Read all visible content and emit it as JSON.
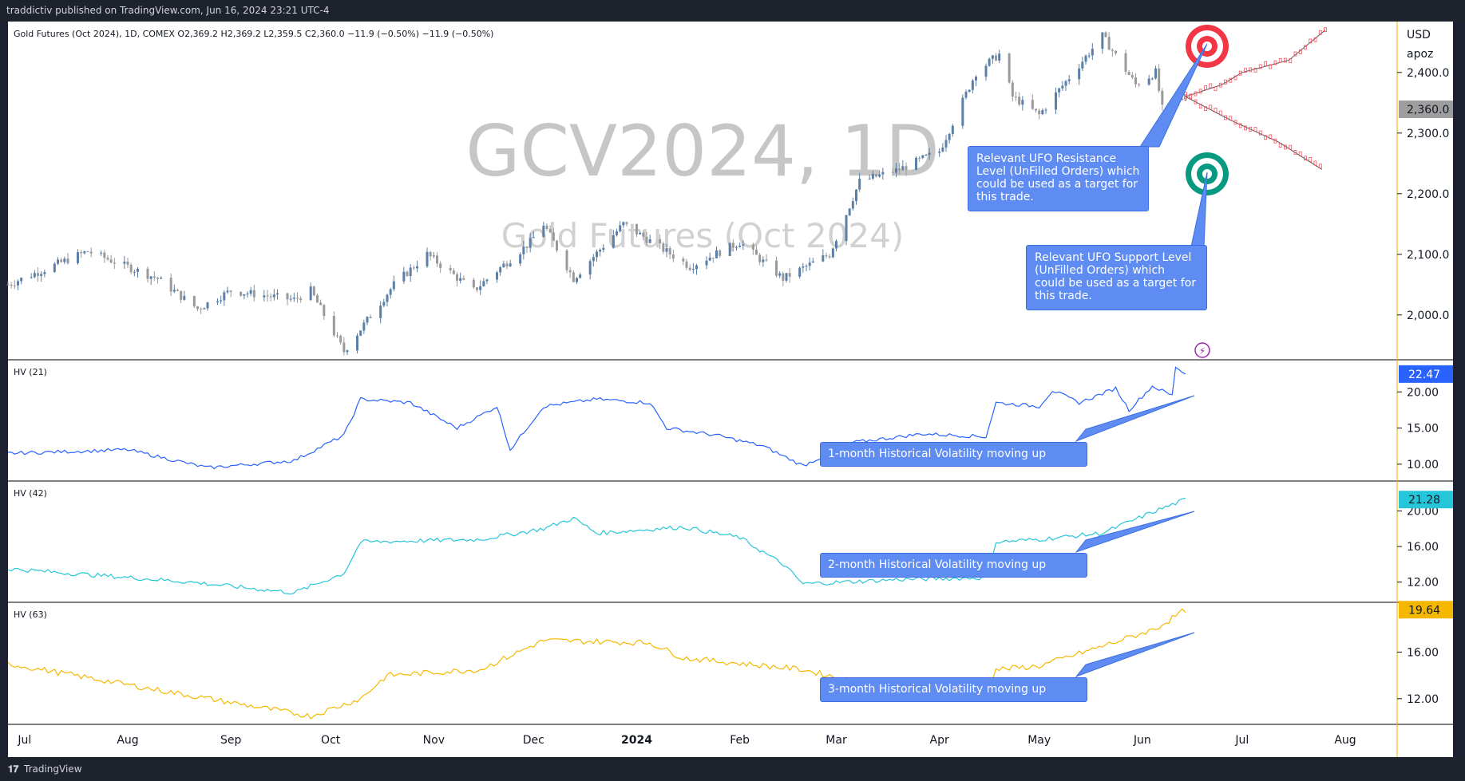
{
  "header": {
    "text": "traddictiv published on TradingView.com, Jun 16, 2024 23:21 UTC-4"
  },
  "footer": {
    "logo": "𝟏𝟕",
    "brand": "TradingView"
  },
  "main_pane": {
    "legend": "Gold Futures (Oct 2024), 1D, COMEX  O2,369.2  H2,369.2  L2,359.5  C2,360.0  −11.9 (−0.50%)  −11.9 (−0.50%)",
    "watermark_symbol": "GCV2024, 1D",
    "watermark_name": "Gold Futures (Oct 2024)",
    "currency": "USD",
    "unit": "apoz",
    "price_ticks": [
      "2,400.0",
      "2,300.0",
      "2,200.0",
      "2,100.0",
      "2,000.0"
    ],
    "last_price": "2,360.0"
  },
  "hv_panes": [
    {
      "label": "HV (21)",
      "last": "22.47",
      "ticks": [
        "20.00",
        "15.00",
        "10.00"
      ],
      "color": "#2962ff",
      "tag_text": "#ffffff"
    },
    {
      "label": "HV (42)",
      "last": "21.28",
      "ticks": [
        "20.00",
        "16.00",
        "12.00"
      ],
      "color": "#26c6da",
      "tag_text": "#131722"
    },
    {
      "label": "HV (63)",
      "last": "19.64",
      "ticks": [
        "16.00",
        "12.00"
      ],
      "color": "#f5b800",
      "tag_text": "#131722"
    }
  ],
  "x_axis": {
    "labels": [
      "Jul",
      "Aug",
      "Sep",
      "Oct",
      "Nov",
      "Dec",
      "2024",
      "Feb",
      "Mar",
      "Apr",
      "May",
      "Jun",
      "Jul",
      "Aug"
    ]
  },
  "annotations": {
    "resistance": "Relevant UFO Resistance Level (UnFilled Orders) which could be used as a target for this trade.",
    "support": "Relevant UFO Support Level (UnFilled Orders) which could be used as a target for this trade.",
    "hv1": "1-month Historical Volatility moving up",
    "hv2": "2-month Historical Volatility moving up",
    "hv3": "3-month Historical Volatility moving up"
  },
  "colors": {
    "up": "#5b7fa6",
    "down": "#9a9a9a",
    "target_red": "#f23645",
    "target_green": "#089981",
    "callout": "#5e8cf2",
    "projection_up": "#f7525f",
    "projection_down": "#f7525f"
  },
  "chart_data": {
    "type": "candlestick",
    "title": "Gold Futures (Oct 2024), 1D, COMEX",
    "x_range": [
      "2023-06",
      "2024-08"
    ],
    "price_ylim": [
      1930,
      2480
    ],
    "ohlc_last": {
      "open": 2369.2,
      "high": 2369.2,
      "low": 2359.5,
      "close": 2360.0,
      "change": -11.9,
      "change_pct": -0.5
    },
    "price_anchor": [
      {
        "date": "2023-06-26",
        "price": 2050
      },
      {
        "date": "2023-07-20",
        "price": 2105
      },
      {
        "date": "2023-08-10",
        "price": 2060
      },
      {
        "date": "2023-08-22",
        "price": 2010
      },
      {
        "date": "2023-09-01",
        "price": 2040
      },
      {
        "date": "2023-09-20",
        "price": 2025
      },
      {
        "date": "2023-09-25",
        "price": 2040
      },
      {
        "date": "2023-10-05",
        "price": 1940
      },
      {
        "date": "2023-10-20",
        "price": 2050
      },
      {
        "date": "2023-10-30",
        "price": 2100
      },
      {
        "date": "2023-11-13",
        "price": 2040
      },
      {
        "date": "2023-11-30",
        "price": 2120
      },
      {
        "date": "2023-12-04",
        "price": 2150
      },
      {
        "date": "2023-12-13",
        "price": 2060
      },
      {
        "date": "2023-12-28",
        "price": 2150
      },
      {
        "date": "2024-01-17",
        "price": 2080
      },
      {
        "date": "2024-02-01",
        "price": 2120
      },
      {
        "date": "2024-02-14",
        "price": 2060
      },
      {
        "date": "2024-02-28",
        "price": 2100
      },
      {
        "date": "2024-03-08",
        "price": 2220
      },
      {
        "date": "2024-03-20",
        "price": 2240
      },
      {
        "date": "2024-04-01",
        "price": 2270
      },
      {
        "date": "2024-04-12",
        "price": 2400
      },
      {
        "date": "2024-04-19",
        "price": 2430
      },
      {
        "date": "2024-04-23",
        "price": 2360
      },
      {
        "date": "2024-05-01",
        "price": 2330
      },
      {
        "date": "2024-05-20",
        "price": 2460
      },
      {
        "date": "2024-05-30",
        "price": 2380
      },
      {
        "date": "2024-06-05",
        "price": 2400
      },
      {
        "date": "2024-06-07",
        "price": 2340
      },
      {
        "date": "2024-06-14",
        "price": 2360
      }
    ],
    "projection_up": [
      {
        "date": "2024-06-14",
        "price": 2360
      },
      {
        "date": "2024-06-25",
        "price": 2380
      },
      {
        "date": "2024-07-01",
        "price": 2400
      },
      {
        "date": "2024-07-15",
        "price": 2420
      },
      {
        "date": "2024-07-26",
        "price": 2470
      }
    ],
    "projection_down": [
      {
        "date": "2024-06-14",
        "price": 2360
      },
      {
        "date": "2024-06-28",
        "price": 2320
      },
      {
        "date": "2024-07-12",
        "price": 2285
      },
      {
        "date": "2024-07-25",
        "price": 2240
      }
    ],
    "ufo_resistance": 2465,
    "ufo_support": 2232,
    "hv21": {
      "ylim": [
        8,
        24
      ],
      "anchor": [
        {
          "date": "2023-06-26",
          "v": 11.5
        },
        {
          "date": "2023-08-01",
          "v": 12
        },
        {
          "date": "2023-08-25",
          "v": 9.5
        },
        {
          "date": "2023-09-20",
          "v": 10.5
        },
        {
          "date": "2023-10-05",
          "v": 14
        },
        {
          "date": "2023-10-10",
          "v": 19
        },
        {
          "date": "2023-10-25",
          "v": 18.5
        },
        {
          "date": "2023-11-08",
          "v": 15
        },
        {
          "date": "2023-11-20",
          "v": 18
        },
        {
          "date": "2023-11-24",
          "v": 12
        },
        {
          "date": "2023-12-04",
          "v": 18
        },
        {
          "date": "2023-12-20",
          "v": 19
        },
        {
          "date": "2024-01-05",
          "v": 18.5
        },
        {
          "date": "2024-01-10",
          "v": 15
        },
        {
          "date": "2024-01-25",
          "v": 14
        },
        {
          "date": "2024-02-08",
          "v": 12.5
        },
        {
          "date": "2024-02-20",
          "v": 9.8
        },
        {
          "date": "2024-03-06",
          "v": 13
        },
        {
          "date": "2024-03-27",
          "v": 14.2
        },
        {
          "date": "2024-04-15",
          "v": 13.8
        },
        {
          "date": "2024-04-18",
          "v": 18.5
        },
        {
          "date": "2024-05-01",
          "v": 18
        },
        {
          "date": "2024-05-05",
          "v": 20.2
        },
        {
          "date": "2024-05-13",
          "v": 18.5
        },
        {
          "date": "2024-05-24",
          "v": 20.5
        },
        {
          "date": "2024-05-28",
          "v": 17.5
        },
        {
          "date": "2024-06-04",
          "v": 20.8
        },
        {
          "date": "2024-06-10",
          "v": 19.5
        },
        {
          "date": "2024-06-11",
          "v": 23.5
        },
        {
          "date": "2024-06-14",
          "v": 22.47
        }
      ]
    },
    "hv42": {
      "ylim": [
        10,
        23
      ],
      "anchor": [
        {
          "date": "2023-06-26",
          "v": 13.5
        },
        {
          "date": "2023-08-20",
          "v": 12
        },
        {
          "date": "2023-09-20",
          "v": 10.8
        },
        {
          "date": "2023-10-05",
          "v": 13
        },
        {
          "date": "2023-10-10",
          "v": 16.5
        },
        {
          "date": "2023-11-15",
          "v": 16.8
        },
        {
          "date": "2023-12-04",
          "v": 18
        },
        {
          "date": "2023-12-13",
          "v": 19.2
        },
        {
          "date": "2023-12-20",
          "v": 17.5
        },
        {
          "date": "2024-01-15",
          "v": 18.2
        },
        {
          "date": "2024-02-01",
          "v": 17
        },
        {
          "date": "2024-02-14",
          "v": 14
        },
        {
          "date": "2024-02-20",
          "v": 11.8
        },
        {
          "date": "2024-03-20",
          "v": 12.3
        },
        {
          "date": "2024-04-15",
          "v": 12.5
        },
        {
          "date": "2024-04-18",
          "v": 16.5
        },
        {
          "date": "2024-05-01",
          "v": 16.8
        },
        {
          "date": "2024-05-20",
          "v": 17.5
        },
        {
          "date": "2024-06-05",
          "v": 20
        },
        {
          "date": "2024-06-14",
          "v": 21.28
        }
      ]
    },
    "hv63": {
      "ylim": [
        10,
        20
      ],
      "anchor": [
        {
          "date": "2023-06-26",
          "v": 15
        },
        {
          "date": "2023-08-15",
          "v": 12.5
        },
        {
          "date": "2023-09-25",
          "v": 10.5
        },
        {
          "date": "2023-10-10",
          "v": 12
        },
        {
          "date": "2023-10-18",
          "v": 14
        },
        {
          "date": "2023-11-15",
          "v": 14.5
        },
        {
          "date": "2023-12-04",
          "v": 17
        },
        {
          "date": "2024-01-05",
          "v": 16.8
        },
        {
          "date": "2024-01-15",
          "v": 15.5
        },
        {
          "date": "2024-02-20",
          "v": 14.5
        },
        {
          "date": "2024-03-06",
          "v": 13.5
        },
        {
          "date": "2024-04-15",
          "v": 12.5
        },
        {
          "date": "2024-04-18",
          "v": 14.5
        },
        {
          "date": "2024-05-01",
          "v": 14.8
        },
        {
          "date": "2024-05-20",
          "v": 16.5
        },
        {
          "date": "2024-06-05",
          "v": 18
        },
        {
          "date": "2024-06-14",
          "v": 19.64
        }
      ]
    }
  }
}
